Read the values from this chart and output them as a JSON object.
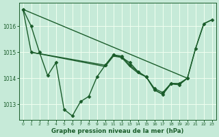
{
  "background_color": "#c6ead8",
  "grid_color": "#f0fff0",
  "line_color": "#1a5c2a",
  "title": "Graphe pression niveau de la mer (hPa)",
  "xlim": [
    -0.5,
    23.5
  ],
  "ylim": [
    1012.4,
    1016.9
  ],
  "yticks": [
    1013,
    1014,
    1015,
    1016
  ],
  "xticks": [
    0,
    1,
    2,
    3,
    4,
    5,
    6,
    7,
    8,
    9,
    10,
    11,
    12,
    13,
    14,
    15,
    16,
    17,
    18,
    19,
    20,
    21,
    22,
    23
  ],
  "series": [
    {
      "x": [
        0,
        1,
        2,
        3,
        4,
        5,
        6,
        7,
        8,
        9,
        10,
        11,
        12,
        13,
        14,
        15,
        16,
        17,
        18,
        19,
        20
      ],
      "y": [
        1016.65,
        1016.0,
        1015.0,
        1014.1,
        1014.6,
        1012.8,
        1012.55,
        1013.1,
        1013.3,
        1014.05,
        1014.5,
        1014.9,
        1014.8,
        1014.6,
        1014.25,
        1014.05,
        1013.6,
        1013.45,
        1013.8,
        1013.8,
        1014.0
      ],
      "marker": "D",
      "markersize": 2.5,
      "linewidth": 1.0
    },
    {
      "x": [
        0,
        1,
        10,
        11,
        12,
        13,
        14,
        15,
        16,
        17,
        18,
        19,
        20,
        21,
        22,
        23
      ],
      "y": [
        1016.65,
        1015.0,
        1014.5,
        1014.9,
        1014.85,
        1014.5,
        1014.25,
        1014.05,
        1013.55,
        1013.38,
        1013.8,
        1013.75,
        1014.0,
        1015.15,
        1016.1,
        1016.25
      ],
      "marker": "D",
      "markersize": 2.5,
      "linewidth": 1.0
    },
    {
      "x": [
        0,
        20
      ],
      "y": [
        1016.65,
        1014.0
      ],
      "marker": null,
      "markersize": 0,
      "linewidth": 1.0
    },
    {
      "x": [
        1,
        10,
        11,
        12,
        13,
        14,
        15,
        16,
        17,
        18,
        19,
        20,
        21,
        22,
        23
      ],
      "y": [
        1015.0,
        1014.45,
        1014.85,
        1014.8,
        1014.45,
        1014.2,
        1014.05,
        1013.55,
        1013.38,
        1013.78,
        1013.75,
        1014.0,
        1015.15,
        1016.1,
        1016.25
      ],
      "marker": null,
      "markersize": 0,
      "linewidth": 1.0
    }
  ]
}
